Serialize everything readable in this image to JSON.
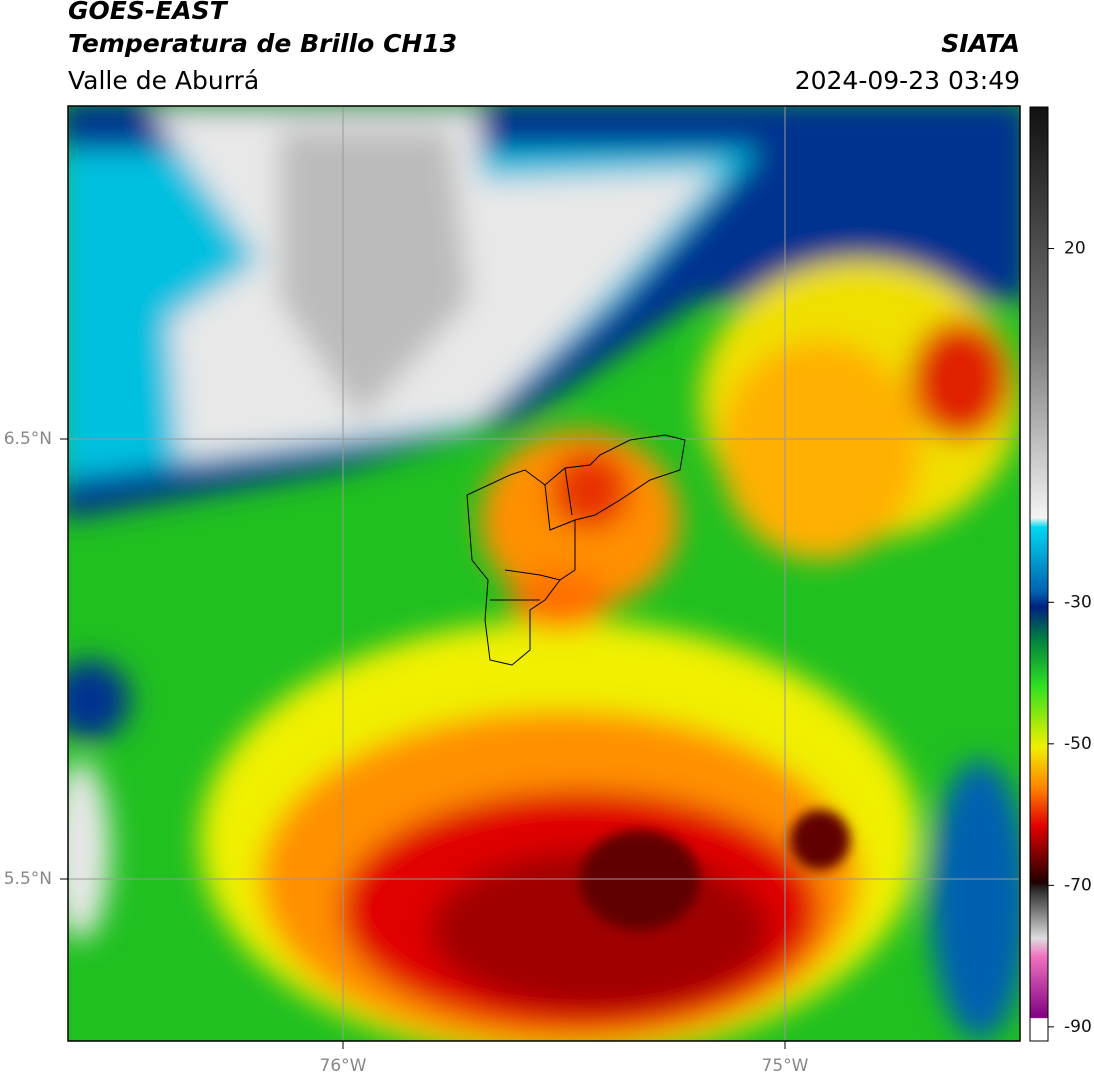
{
  "header": {
    "title": "GOES-EAST",
    "subtitle": "Temperatura de Brillo CH13",
    "region": "Valle de Aburrá",
    "source": "SIATA",
    "datetime": "2024-09-23 03:49"
  },
  "map": {
    "lat_labels": [
      "6.5°N",
      "5.5°N"
    ],
    "lon_labels": [
      "76°W",
      "75°W"
    ]
  },
  "colorbar": {
    "lim": [
      -92,
      40
    ],
    "ticks": [
      20,
      -30,
      -50,
      -70,
      -90
    ]
  }
}
